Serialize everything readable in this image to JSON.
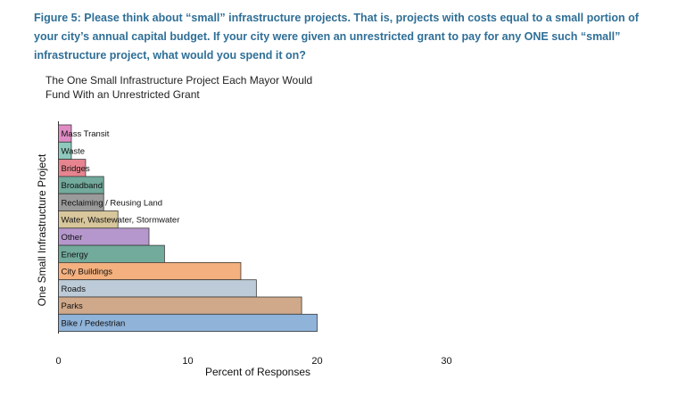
{
  "caption": "Figure 5: Please think about “small” infrastructure projects. That is, projects with costs equal to a small portion of your city’s annual capital budget. If your city were given an unrestricted grant to pay for any ONE such “small” infrastructure project, what would you spend it on?",
  "chart_data": {
    "type": "bar",
    "orientation": "horizontal",
    "title": "The One Small Infrastructure Project Each Mayor Would Fund With an Unrestricted Grant",
    "xlabel": "Percent of Responses",
    "ylabel": "One Small Infrastructure Project",
    "xlim": [
      0,
      30
    ],
    "xticks": [
      0,
      10,
      20,
      30
    ],
    "grid": false,
    "categories": [
      "Mass Transit",
      "Waste",
      "Bridges",
      "Broadband",
      "Reclaiming / Reusing Land",
      "Water, Wastewater, Stormwater",
      "Other",
      "Energy",
      "City Buildings",
      "Roads",
      "Parks",
      "Bike / Pedestrian"
    ],
    "values": [
      1.0,
      1.0,
      2.1,
      3.5,
      3.5,
      4.6,
      7.0,
      8.2,
      14.1,
      15.3,
      18.8,
      20.0
    ],
    "colors": [
      "#e08cc4",
      "#8ec9bd",
      "#e6848f",
      "#72aa9c",
      "#9b9b9b",
      "#d8c79c",
      "#b697cd",
      "#72aa9c",
      "#f4b07e",
      "#bccbd7",
      "#cfa98a",
      "#8fb3d9"
    ]
  }
}
